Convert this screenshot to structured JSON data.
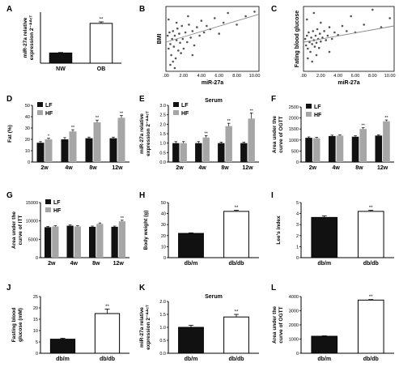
{
  "figure": {
    "panels": [
      "A",
      "B",
      "C",
      "D",
      "E",
      "F",
      "G",
      "H",
      "I",
      "J",
      "K",
      "L"
    ]
  },
  "colors": {
    "black": "#111111",
    "gray": "#a6a6a6",
    "white": "#ffffff",
    "line": "#888888",
    "dot": "#555555"
  },
  "chart_data": [
    {
      "panel": "A",
      "type": "bar",
      "ylabel": "miR-27a relative expression 2^-ΔΔCT",
      "categories": [
        "NW",
        "OB"
      ],
      "values": [
        1.0,
        3.9
      ],
      "errors": [
        0.05,
        0.15
      ],
      "fills": [
        "black",
        "white"
      ],
      "ylim": [
        0,
        5
      ],
      "annotations": [
        {
          "category": "OB",
          "text": "**"
        }
      ]
    },
    {
      "panel": "B",
      "type": "scatter",
      "xlabel": "miR-27a",
      "ylabel": "BMI",
      "xticks": [
        ".00",
        "2.00",
        "4.00",
        "6.00",
        "8.00",
        "10.00"
      ],
      "xlim": [
        0,
        10.5
      ],
      "ylim": [
        0,
        1
      ],
      "fit_line": [
        [
          0,
          0.45
        ],
        [
          10.5,
          0.88
        ]
      ],
      "points": [
        [
          0.2,
          0.55
        ],
        [
          0.3,
          0.35
        ],
        [
          0.4,
          0.6
        ],
        [
          0.5,
          0.42
        ],
        [
          0.6,
          0.25
        ],
        [
          0.7,
          0.5
        ],
        [
          0.8,
          0.62
        ],
        [
          0.9,
          0.38
        ],
        [
          1.0,
          0.55
        ],
        [
          1.1,
          0.2
        ],
        [
          1.2,
          0.48
        ],
        [
          1.3,
          0.66
        ],
        [
          1.4,
          0.32
        ],
        [
          1.5,
          0.58
        ],
        [
          1.6,
          0.44
        ],
        [
          1.7,
          0.28
        ],
        [
          1.8,
          0.7
        ],
        [
          1.9,
          0.5
        ],
        [
          2.0,
          0.35
        ],
        [
          2.2,
          0.6
        ],
        [
          2.4,
          0.45
        ],
        [
          2.6,
          0.72
        ],
        [
          2.8,
          0.52
        ],
        [
          3.0,
          0.62
        ],
        [
          3.2,
          0.4
        ],
        [
          3.5,
          0.68
        ],
        [
          3.8,
          0.55
        ],
        [
          4.0,
          0.78
        ],
        [
          4.3,
          0.6
        ],
        [
          4.6,
          0.7
        ],
        [
          5.0,
          0.65
        ],
        [
          5.5,
          0.82
        ],
        [
          6.0,
          0.58
        ],
        [
          6.5,
          0.75
        ],
        [
          7.0,
          0.9
        ],
        [
          8.0,
          0.72
        ],
        [
          9.0,
          0.85
        ],
        [
          10.0,
          0.92
        ],
        [
          0.5,
          0.1
        ],
        [
          0.8,
          0.15
        ],
        [
          1.0,
          0.05
        ],
        [
          0.3,
          0.8
        ],
        [
          2.5,
          0.85
        ],
        [
          1.2,
          0.75
        ],
        [
          3.0,
          0.25
        ]
      ]
    },
    {
      "panel": "C",
      "type": "scatter",
      "xlabel": "miR-27a",
      "ylabel": "Fating blood glucose",
      "xticks": [
        ".00",
        "2.00",
        "4.00",
        "6.00",
        "8.00",
        "10.00"
      ],
      "xlim": [
        0,
        10.5
      ],
      "ylim": [
        0,
        1
      ],
      "fit_line": [
        [
          0,
          0.45
        ],
        [
          10.5,
          0.7
        ]
      ],
      "points": [
        [
          0.2,
          0.5
        ],
        [
          0.3,
          0.4
        ],
        [
          0.4,
          0.55
        ],
        [
          0.5,
          0.35
        ],
        [
          0.6,
          0.6
        ],
        [
          0.7,
          0.45
        ],
        [
          0.8,
          0.3
        ],
        [
          0.9,
          0.52
        ],
        [
          1.0,
          0.42
        ],
        [
          1.1,
          0.62
        ],
        [
          1.2,
          0.48
        ],
        [
          1.3,
          0.38
        ],
        [
          1.4,
          0.55
        ],
        [
          1.5,
          0.44
        ],
        [
          1.6,
          0.65
        ],
        [
          1.7,
          0.5
        ],
        [
          1.8,
          0.36
        ],
        [
          1.9,
          0.58
        ],
        [
          2.0,
          0.46
        ],
        [
          2.2,
          0.52
        ],
        [
          2.4,
          0.62
        ],
        [
          2.6,
          0.48
        ],
        [
          2.8,
          0.55
        ],
        [
          3.0,
          0.68
        ],
        [
          3.3,
          0.5
        ],
        [
          3.6,
          0.6
        ],
        [
          4.0,
          0.56
        ],
        [
          4.5,
          0.7
        ],
        [
          5.0,
          0.62
        ],
        [
          5.5,
          0.85
        ],
        [
          6.0,
          0.6
        ],
        [
          7.0,
          0.72
        ],
        [
          8.0,
          0.95
        ],
        [
          9.0,
          0.68
        ],
        [
          10.0,
          0.82
        ],
        [
          0.5,
          0.2
        ],
        [
          1.0,
          0.15
        ],
        [
          1.5,
          0.25
        ],
        [
          0.4,
          0.8
        ],
        [
          2.0,
          0.75
        ],
        [
          3.0,
          0.3
        ],
        [
          1.2,
          0.9
        ]
      ]
    },
    {
      "panel": "D",
      "type": "bar",
      "ylabel": "Fat (%)",
      "yticks": [
        "0",
        "10",
        "20",
        "30",
        "40",
        "50"
      ],
      "ylim": [
        0,
        50
      ],
      "categories": [
        "2w",
        "4w",
        "8w",
        "12w"
      ],
      "legend": [
        "LF",
        "HF"
      ],
      "series": [
        {
          "name": "LF",
          "values": [
            17,
            20,
            21,
            21
          ],
          "errors": [
            1,
            1.5,
            1,
            1
          ]
        },
        {
          "name": "HF",
          "values": [
            20,
            27,
            35,
            39
          ],
          "errors": [
            1,
            1.5,
            2,
            2
          ]
        }
      ],
      "annotations": [
        "*",
        "**",
        "**",
        "**"
      ]
    },
    {
      "panel": "E",
      "type": "bar",
      "title": "Serum",
      "ylabel": "miR-27a relative expression 2^-ΔΔCT",
      "yticks": [
        "0.0",
        "0.5",
        "1.0",
        "1.5",
        "2.0",
        "2.5",
        "3.0"
      ],
      "ylim": [
        0,
        3
      ],
      "categories": [
        "2w",
        "4w",
        "8w",
        "12w"
      ],
      "legend": [
        "LF",
        "HF"
      ],
      "series": [
        {
          "name": "LF",
          "values": [
            1.0,
            1.0,
            1.0,
            1.0
          ],
          "errors": [
            0.08,
            0.08,
            0.05,
            0.05
          ]
        },
        {
          "name": "HF",
          "values": [
            1.0,
            1.3,
            1.9,
            2.3
          ],
          "errors": [
            0.08,
            0.1,
            0.15,
            0.3
          ]
        }
      ],
      "annotations": [
        "",
        "**",
        "**",
        "**"
      ]
    },
    {
      "panel": "F",
      "type": "bar",
      "ylabel": "Area under the curve of OGTT",
      "yticks": [
        "0",
        "500",
        "1000",
        "1500",
        "2000",
        "2500"
      ],
      "ylim": [
        0,
        2500
      ],
      "categories": [
        "2w",
        "4w",
        "8w",
        "12w"
      ],
      "legend": [
        "LF",
        "HF"
      ],
      "series": [
        {
          "name": "LF",
          "values": [
            1100,
            1180,
            1150,
            1200
          ],
          "errors": [
            40,
            40,
            40,
            40
          ]
        },
        {
          "name": "HF",
          "values": [
            1080,
            1200,
            1500,
            1850
          ],
          "errors": [
            40,
            40,
            60,
            60
          ]
        }
      ],
      "annotations": [
        "",
        "",
        "**",
        "**"
      ]
    },
    {
      "panel": "G",
      "type": "bar",
      "ylabel": "Area under the curve of ITT",
      "yticks": [
        "0",
        "5000",
        "10000",
        "15000"
      ],
      "ylim": [
        0,
        15000
      ],
      "categories": [
        "2w",
        "4w",
        "8w",
        "12w"
      ],
      "legend": [
        "LF",
        "HF"
      ],
      "series": [
        {
          "name": "LF",
          "values": [
            8300,
            8700,
            8400,
            8400
          ],
          "errors": [
            200,
            200,
            200,
            200
          ]
        },
        {
          "name": "HF",
          "values": [
            8500,
            8500,
            9200,
            9900
          ],
          "errors": [
            200,
            200,
            250,
            300
          ]
        }
      ],
      "annotations": [
        "",
        "",
        "",
        "**"
      ]
    },
    {
      "panel": "H",
      "type": "bar",
      "ylabel": "Body weight (g)",
      "yticks": [
        "0",
        "10",
        "20",
        "30",
        "40",
        "50"
      ],
      "ylim": [
        0,
        50
      ],
      "categories": [
        "db/m",
        "db/db"
      ],
      "values": [
        22,
        42
      ],
      "errors": [
        0.5,
        1
      ],
      "fills": [
        "black",
        "white"
      ],
      "annotations": [
        {
          "category": "db/db",
          "text": "**"
        }
      ]
    },
    {
      "panel": "I",
      "type": "bar",
      "ylabel": "Lee's index",
      "yticks": [
        "0",
        "1",
        "2",
        "3",
        "4",
        "5"
      ],
      "ylim": [
        0,
        5
      ],
      "categories": [
        "db/m",
        "db/db"
      ],
      "values": [
        3.65,
        4.2
      ],
      "errors": [
        0.15,
        0.1
      ],
      "fills": [
        "black",
        "white"
      ],
      "annotations": [
        {
          "category": "db/db",
          "text": "**"
        }
      ]
    },
    {
      "panel": "J",
      "type": "bar",
      "ylabel": "Fasting blood glucose (mM)",
      "yticks": [
        "0",
        "5",
        "10",
        "15",
        "20",
        "25"
      ],
      "ylim": [
        0,
        25
      ],
      "categories": [
        "db/m",
        "db/db"
      ],
      "values": [
        6.2,
        17.5
      ],
      "errors": [
        0.4,
        2
      ],
      "fills": [
        "black",
        "white"
      ],
      "annotations": [
        {
          "category": "db/db",
          "text": "**"
        }
      ]
    },
    {
      "panel": "K",
      "type": "bar",
      "title": "Serum",
      "ylabel": "miR-27a relative expression 2^-ΔΔCT",
      "yticks": [
        "0.0",
        "0.5",
        "1.0",
        "1.5",
        "2.0"
      ],
      "ylim": [
        0,
        2
      ],
      "categories": [
        "db/m",
        "db/db"
      ],
      "values": [
        1.0,
        1.4
      ],
      "errors": [
        0.08,
        0.1
      ],
      "fills": [
        "black",
        "white"
      ],
      "annotations": [
        {
          "category": "db/db",
          "text": "**"
        }
      ]
    },
    {
      "panel": "L",
      "type": "bar",
      "ylabel": "Area under the curve of OGTT",
      "yticks": [
        "0",
        "1000",
        "2000",
        "3000",
        "4000"
      ],
      "ylim": [
        0,
        4000
      ],
      "categories": [
        "db/m",
        "db/db"
      ],
      "values": [
        1200,
        3750
      ],
      "errors": [
        30,
        40
      ],
      "fills": [
        "black",
        "white"
      ],
      "annotations": [
        {
          "category": "db/db",
          "text": "**"
        }
      ]
    }
  ]
}
